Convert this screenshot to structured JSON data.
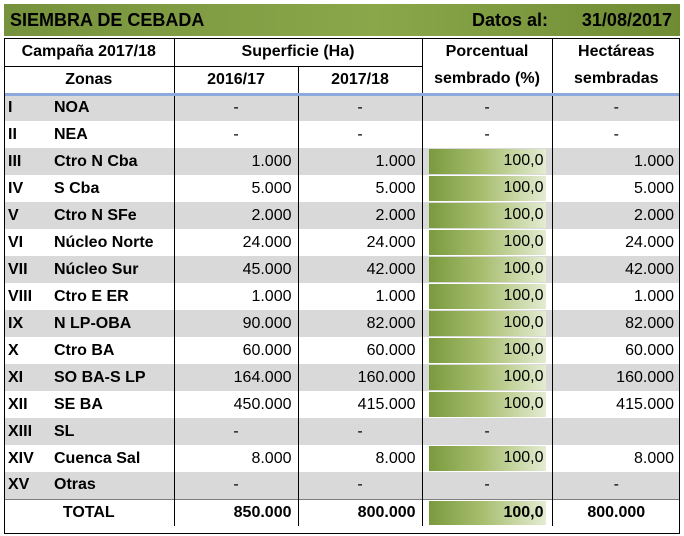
{
  "title": {
    "left": "SIEMBRA DE CEBADA",
    "datos_label": "Datos al:",
    "date": "31/08/2017"
  },
  "header": {
    "campaign": "Campaña 2017/18",
    "superficie": "Superficie (Ha)",
    "porcentual_1": "Porcentual",
    "porcentual_2": "sembrado (%)",
    "hectareas_1": "Hectáreas",
    "hectareas_2": "sembradas",
    "zonas": "Zonas",
    "y1": "2016/17",
    "y2": "2017/18"
  },
  "colors": {
    "title_bar": "#76923c",
    "row_gray": "#d9d9d9",
    "header_rule": "#8ea9db",
    "bar_dark": "#7a9a3e"
  },
  "rows": [
    {
      "roman": "I",
      "zone": "NOA",
      "s1617": "-",
      "s1718": "-",
      "pct": "-",
      "pct_value": null,
      "ha": "-"
    },
    {
      "roman": "II",
      "zone": "NEA",
      "s1617": "-",
      "s1718": "-",
      "pct": "-",
      "pct_value": null,
      "ha": "-"
    },
    {
      "roman": "III",
      "zone": "Ctro N Cba",
      "s1617": "1.000",
      "s1718": "1.000",
      "pct": "100,0",
      "pct_value": 100,
      "ha": "1.000"
    },
    {
      "roman": "IV",
      "zone": "S Cba",
      "s1617": "5.000",
      "s1718": "5.000",
      "pct": "100,0",
      "pct_value": 100,
      "ha": "5.000"
    },
    {
      "roman": "V",
      "zone": "Ctro N SFe",
      "s1617": "2.000",
      "s1718": "2.000",
      "pct": "100,0",
      "pct_value": 100,
      "ha": "2.000"
    },
    {
      "roman": "VI",
      "zone": "Núcleo Norte",
      "s1617": "24.000",
      "s1718": "24.000",
      "pct": "100,0",
      "pct_value": 100,
      "ha": "24.000"
    },
    {
      "roman": "VII",
      "zone": "Núcleo Sur",
      "s1617": "45.000",
      "s1718": "42.000",
      "pct": "100,0",
      "pct_value": 100,
      "ha": "42.000"
    },
    {
      "roman": "VIII",
      "zone": "Ctro E ER",
      "s1617": "1.000",
      "s1718": "1.000",
      "pct": "100,0",
      "pct_value": 100,
      "ha": "1.000"
    },
    {
      "roman": "IX",
      "zone": "N LP-OBA",
      "s1617": "90.000",
      "s1718": "82.000",
      "pct": "100,0",
      "pct_value": 100,
      "ha": "82.000"
    },
    {
      "roman": "X",
      "zone": "Ctro BA",
      "s1617": "60.000",
      "s1718": "60.000",
      "pct": "100,0",
      "pct_value": 100,
      "ha": "60.000"
    },
    {
      "roman": "XI",
      "zone": "SO BA-S LP",
      "s1617": "164.000",
      "s1718": "160.000",
      "pct": "100,0",
      "pct_value": 100,
      "ha": "160.000"
    },
    {
      "roman": "XII",
      "zone": "SE BA",
      "s1617": "450.000",
      "s1718": "415.000",
      "pct": "100,0",
      "pct_value": 100,
      "ha": "415.000"
    },
    {
      "roman": "XIII",
      "zone": "SL",
      "s1617": "-",
      "s1718": "-",
      "pct": "-",
      "pct_value": null,
      "ha": ""
    },
    {
      "roman": "XIV",
      "zone": "Cuenca Sal",
      "s1617": "8.000",
      "s1718": "8.000",
      "pct": "100,0",
      "pct_value": 100,
      "ha": "8.000"
    },
    {
      "roman": "XV",
      "zone": "Otras",
      "s1617": "-",
      "s1718": "-",
      "pct": "-",
      "pct_value": null,
      "ha": "-"
    }
  ],
  "total": {
    "label": "TOTAL",
    "s1617": "850.000",
    "s1718": "800.000",
    "pct": "100,0",
    "pct_value": 100,
    "ha": "800.000"
  }
}
